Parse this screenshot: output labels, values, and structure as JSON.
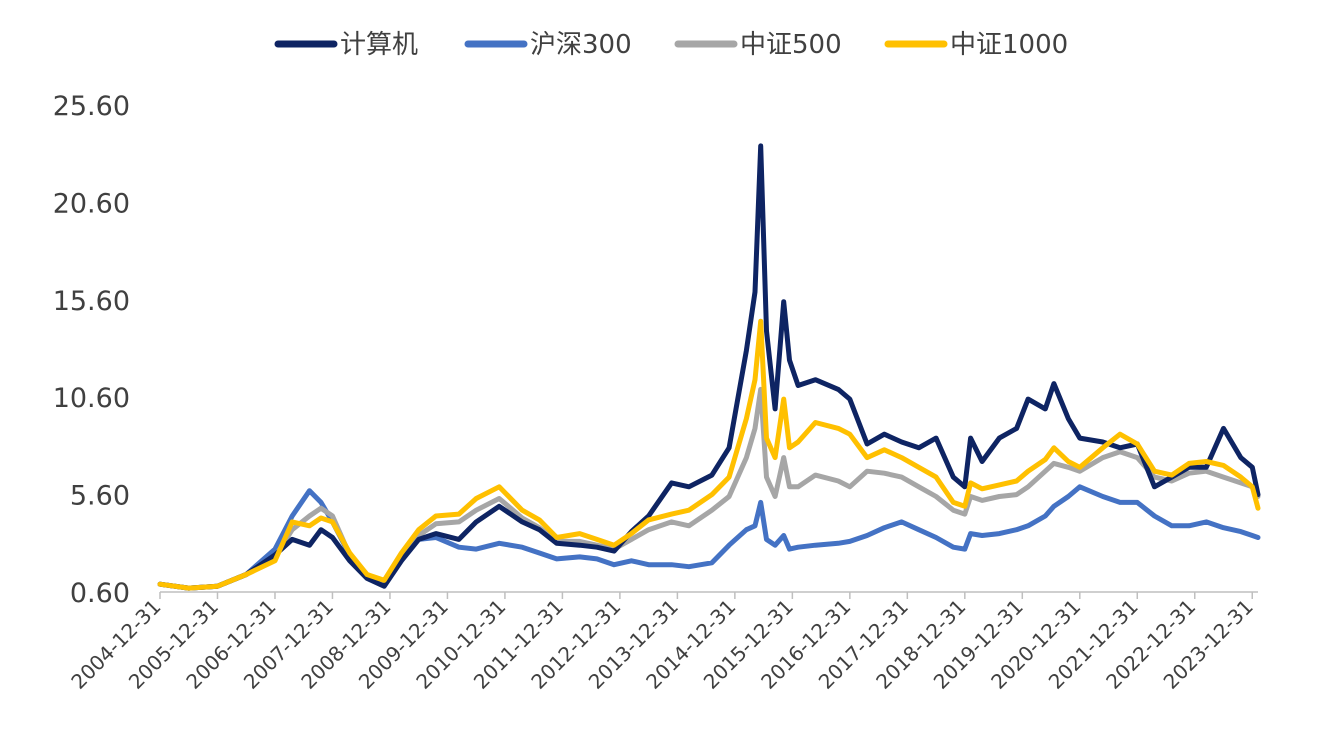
{
  "chart_data": {
    "type": "line",
    "title": "",
    "xlabel": "",
    "ylabel": "",
    "ylim": [
      0.6,
      25.6
    ],
    "yticks": [
      "25.60",
      "20.60",
      "15.60",
      "10.60",
      "5.60",
      "0.60"
    ],
    "ytick_values": [
      25.6,
      20.6,
      15.6,
      10.6,
      5.6,
      0.6
    ],
    "xticks": [
      "2004-12-31",
      "2005-12-31",
      "2006-12-31",
      "2007-12-31",
      "2008-12-31",
      "2009-12-31",
      "2010-12-31",
      "2011-12-31",
      "2012-12-31",
      "2013-12-31",
      "2014-12-31",
      "2015-12-31",
      "2016-12-31",
      "2017-12-31",
      "2018-12-31",
      "2019-12-31",
      "2020-12-31",
      "2021-12-31",
      "2022-12-31",
      "2023-12-31"
    ],
    "x_range": [
      2005.0,
      2024.1
    ],
    "x": [
      2005.0,
      2005.5,
      2006.0,
      2006.5,
      2007.0,
      2007.3,
      2007.6,
      2007.8,
      2008.0,
      2008.3,
      2008.6,
      2008.9,
      2009.2,
      2009.5,
      2009.8,
      2010.2,
      2010.5,
      2010.9,
      2011.3,
      2011.6,
      2011.9,
      2012.3,
      2012.6,
      2012.9,
      2013.2,
      2013.5,
      2013.9,
      2014.2,
      2014.6,
      2014.9,
      2015.2,
      2015.35,
      2015.45,
      2015.55,
      2015.7,
      2015.85,
      2015.95,
      2016.1,
      2016.4,
      2016.8,
      2017.0,
      2017.3,
      2017.6,
      2017.9,
      2018.2,
      2018.5,
      2018.8,
      2019.0,
      2019.1,
      2019.3,
      2019.6,
      2019.9,
      2020.1,
      2020.4,
      2020.55,
      2020.8,
      2021.0,
      2021.4,
      2021.7,
      2022.0,
      2022.3,
      2022.6,
      2022.9,
      2023.2,
      2023.5,
      2023.8,
      2024.0,
      2024.1
    ],
    "series": [
      {
        "name": "计算机",
        "color": "#0e2463",
        "values": [
          1.0,
          0.8,
          0.9,
          1.5,
          2.5,
          3.3,
          3.0,
          3.8,
          3.4,
          2.2,
          1.3,
          0.9,
          2.2,
          3.3,
          3.6,
          3.3,
          4.2,
          5.0,
          4.2,
          3.8,
          3.1,
          3.0,
          2.9,
          2.7,
          3.7,
          4.5,
          6.2,
          6.0,
          6.6,
          8.0,
          13.0,
          16.0,
          23.5,
          14.0,
          10.0,
          15.5,
          12.5,
          11.2,
          11.5,
          11.0,
          10.5,
          8.2,
          8.7,
          8.3,
          8.0,
          8.5,
          6.5,
          6.0,
          8.5,
          7.3,
          8.5,
          9.0,
          10.5,
          10.0,
          11.3,
          9.5,
          8.5,
          8.3,
          8.0,
          8.2,
          6.0,
          6.5,
          7.0,
          7.0,
          9.0,
          7.5,
          7.0,
          5.6
        ]
      },
      {
        "name": "沪深300",
        "color": "#4472c4",
        "values": [
          1.0,
          0.8,
          0.9,
          1.5,
          2.8,
          4.5,
          5.8,
          5.2,
          4.2,
          2.5,
          1.5,
          1.1,
          2.4,
          3.3,
          3.4,
          2.9,
          2.8,
          3.1,
          2.9,
          2.6,
          2.3,
          2.4,
          2.3,
          2.0,
          2.2,
          2.0,
          2.0,
          1.9,
          2.1,
          3.0,
          3.8,
          4.0,
          5.2,
          3.3,
          3.0,
          3.5,
          2.8,
          2.9,
          3.0,
          3.1,
          3.2,
          3.5,
          3.9,
          4.2,
          3.8,
          3.4,
          2.9,
          2.8,
          3.6,
          3.5,
          3.6,
          3.8,
          4.0,
          4.5,
          5.0,
          5.5,
          6.0,
          5.5,
          5.2,
          5.2,
          4.5,
          4.0,
          4.0,
          4.2,
          3.9,
          3.7,
          3.5,
          3.4
        ]
      },
      {
        "name": "中证500",
        "color": "#a6a6a6",
        "values": [
          1.0,
          0.8,
          0.9,
          1.5,
          2.4,
          3.8,
          4.5,
          4.9,
          4.5,
          2.5,
          1.4,
          1.1,
          2.4,
          3.5,
          4.1,
          4.2,
          4.8,
          5.4,
          4.4,
          3.9,
          3.2,
          3.2,
          3.0,
          2.8,
          3.3,
          3.8,
          4.2,
          4.0,
          4.8,
          5.5,
          7.5,
          9.0,
          11.0,
          6.5,
          5.5,
          7.5,
          6.0,
          6.0,
          6.6,
          6.3,
          6.0,
          6.8,
          6.7,
          6.5,
          6.0,
          5.5,
          4.8,
          4.6,
          5.5,
          5.3,
          5.5,
          5.6,
          6.0,
          6.8,
          7.2,
          7.0,
          6.8,
          7.5,
          7.8,
          7.5,
          6.5,
          6.3,
          6.7,
          6.8,
          6.5,
          6.2,
          6.0,
          5.5
        ]
      },
      {
        "name": "中证1000",
        "color": "#ffc000",
        "values": [
          1.0,
          0.8,
          0.9,
          1.5,
          2.2,
          4.2,
          4.0,
          4.4,
          4.2,
          2.6,
          1.5,
          1.2,
          2.6,
          3.8,
          4.5,
          4.6,
          5.4,
          6.0,
          4.8,
          4.3,
          3.4,
          3.6,
          3.3,
          3.0,
          3.6,
          4.3,
          4.6,
          4.8,
          5.6,
          6.5,
          9.5,
          11.5,
          14.5,
          8.5,
          7.5,
          10.5,
          8.0,
          8.3,
          9.3,
          9.0,
          8.7,
          7.5,
          7.9,
          7.5,
          7.0,
          6.5,
          5.2,
          5.0,
          6.2,
          5.9,
          6.1,
          6.3,
          6.8,
          7.4,
          8.0,
          7.3,
          7.0,
          8.0,
          8.7,
          8.2,
          6.8,
          6.6,
          7.2,
          7.3,
          7.1,
          6.5,
          6.0,
          4.9
        ]
      }
    ]
  }
}
